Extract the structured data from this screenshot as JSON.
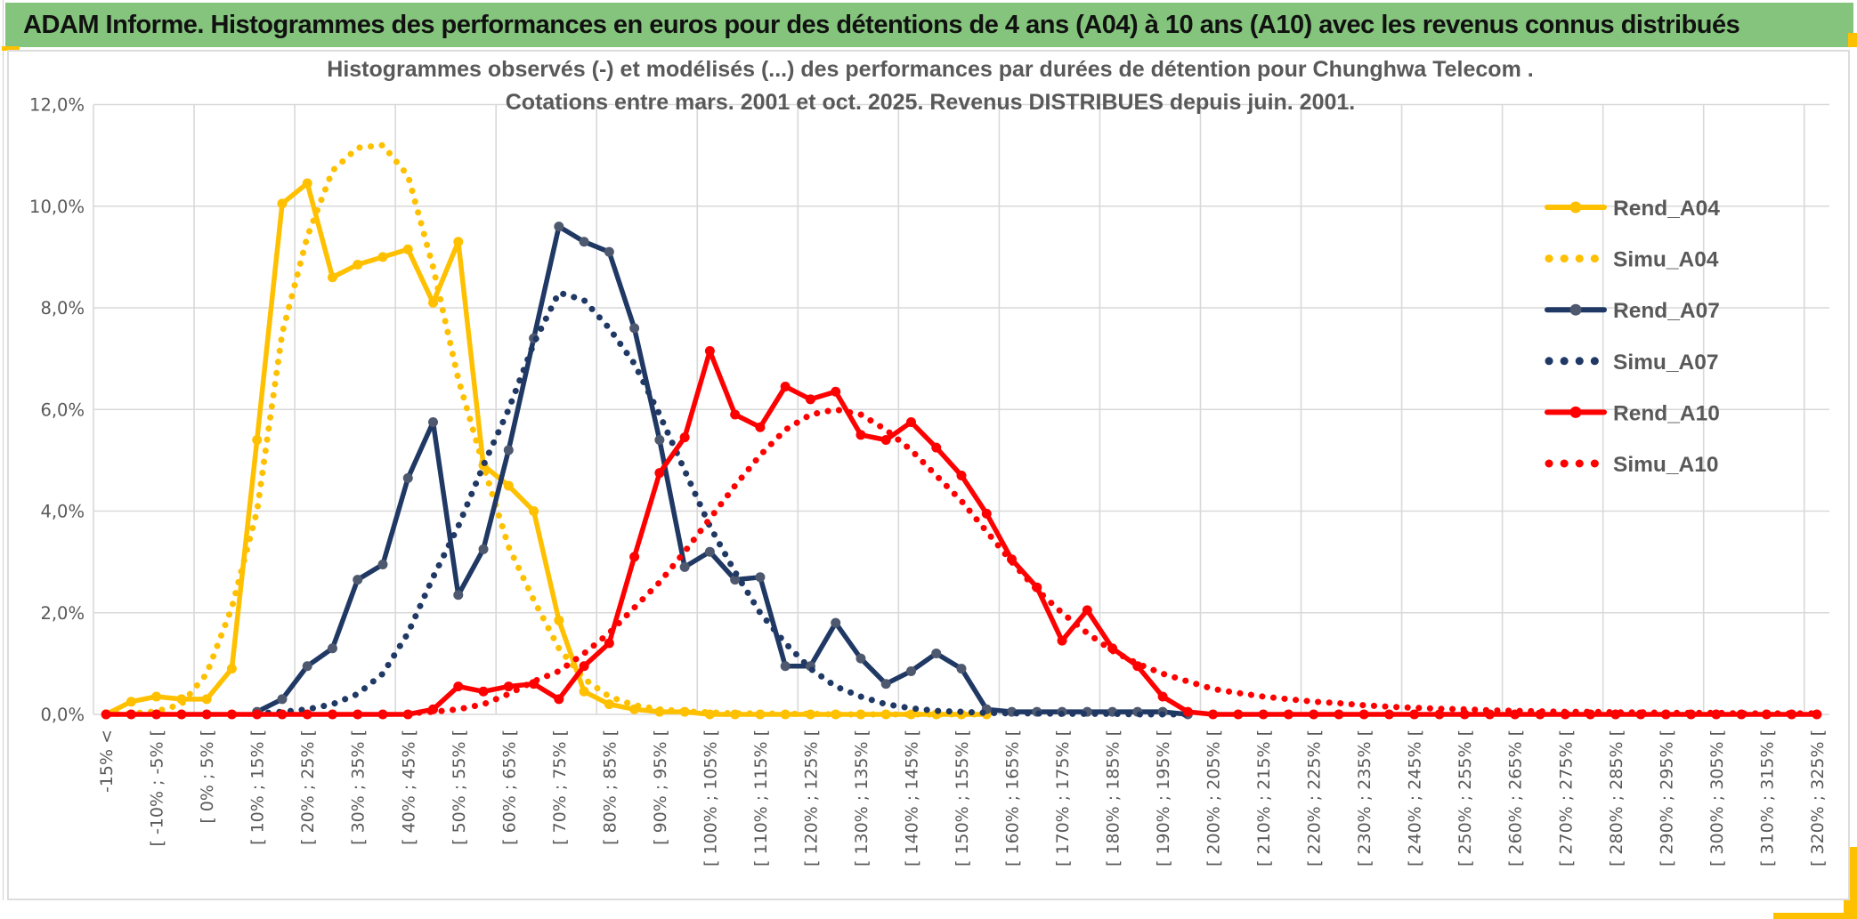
{
  "header": {
    "title": "ADAM Informe. Histogrammes des performances en euros pour des détentions de 4 ans (A04) à 10 ans (A10) avec les revenus connus distribués",
    "bar_color": "#84C47C",
    "accent_color": "#FFC000"
  },
  "chart_data": {
    "type": "line",
    "title_line1": "Histogrammes observés (-) et modélisés (...) des performances par durées de détention pour Chunghwa Telecom .",
    "title_line2": "Cotations entre mars. 2001 et oct. 2025. Revenus DISTRIBUES depuis juin. 2001.",
    "ylabel": "",
    "xlabel": "",
    "ylim": [
      0,
      12
    ],
    "y_tick_step": 2,
    "y_ticks": [
      "0,0%",
      "2,0%",
      "4,0%",
      "6,0%",
      "8,0%",
      "10,0%",
      "12,0%"
    ],
    "n_categories": 69,
    "x_label_interval": 2,
    "x_labels_shown": [
      "-15% <",
      "[ -10% ; -5% [",
      "[ 0% ; 5% [",
      "[ 10% ; 15% [",
      "[ 20% ; 25% [",
      "[ 30% ; 35% [",
      "[ 40% ; 45% [",
      "[ 50% ; 55% [",
      "[ 60% ; 65% [",
      "[ 70% ; 75% [",
      "[ 80% ; 85% [",
      "[ 90% ; 95% [",
      "[ 100% ; 105% [",
      "[ 110% ; 115% [",
      "[ 120% ; 125% [",
      "[ 130% ; 135% [",
      "[ 140% ; 145% [",
      "[ 150% ; 155% [",
      "[ 160% ; 165% [",
      "[ 170% ; 175% [",
      "[ 180% ; 185% [",
      "[ 190% ; 195% [",
      "[ 200% ; 205% [",
      "[ 210% ; 215% [",
      "[ 220% ; 225% [",
      "[ 230% ; 235% [",
      "[ 240% ; 245% [",
      "[ 250% ; 255% [",
      "[ 260% ; 265% [",
      "[ 270% ; 275% [",
      "[ 280% ; 285% [",
      "[ 290% ; 295% [",
      "[ 300% ; 305% [",
      "[ 310% ; 315% [",
      "[ 320% ; 325% ["
    ],
    "grid": true,
    "grid_color": "#D9D9D9",
    "axis_text_color": "#595959",
    "legend_position": "right-inside",
    "series": [
      {
        "name": "Rend_A04",
        "style": "solid",
        "color": "#FFC000",
        "marker_color": "#FFC000",
        "values": [
          0,
          0.25,
          0.35,
          0.3,
          0.3,
          0.9,
          5.4,
          10.05,
          10.45,
          8.6,
          8.85,
          9.0,
          9.15,
          8.1,
          9.3,
          4.9,
          4.5,
          4.0,
          1.85,
          0.45,
          0.2,
          0.1,
          0.05,
          0.05,
          0,
          0,
          0,
          0,
          0,
          0,
          0,
          0,
          0,
          0,
          0,
          0,
          null,
          null,
          null,
          null,
          null,
          null,
          null,
          null,
          null,
          null,
          null,
          null,
          null,
          null,
          null,
          null,
          null,
          null,
          null,
          null,
          null,
          null,
          null,
          null,
          null,
          null,
          null,
          null,
          null,
          null,
          null,
          null,
          null
        ]
      },
      {
        "name": "Simu_A04",
        "style": "dotted",
        "color": "#FFC000",
        "marker_color": "#FFC000",
        "values": [
          0,
          0.02,
          0.06,
          0.2,
          0.8,
          2.1,
          4.0,
          7.5,
          9.4,
          10.7,
          11.15,
          11.2,
          10.6,
          8.8,
          6.6,
          4.9,
          3.3,
          2.25,
          1.3,
          0.7,
          0.35,
          0.18,
          0.1,
          0.06,
          0.04,
          0.02,
          0.02,
          0.01,
          0.01,
          0,
          0,
          0,
          0,
          0,
          0,
          0,
          null,
          null,
          null,
          null,
          null,
          null,
          null,
          null,
          null,
          null,
          null,
          null,
          null,
          null,
          null,
          null,
          null,
          null,
          null,
          null,
          null,
          null,
          null,
          null,
          null,
          null,
          null,
          null,
          null,
          null,
          null,
          null,
          null
        ]
      },
      {
        "name": "Rend_A07",
        "style": "solid",
        "color": "#1F3864",
        "marker_color": "#4E586E",
        "values": [
          null,
          null,
          null,
          null,
          null,
          null,
          0.05,
          0.3,
          0.95,
          1.3,
          2.65,
          2.95,
          4.65,
          5.75,
          2.35,
          3.25,
          5.2,
          7.4,
          9.6,
          9.3,
          9.1,
          7.6,
          5.4,
          2.9,
          3.2,
          2.65,
          2.7,
          0.95,
          0.95,
          1.8,
          1.1,
          0.6,
          0.85,
          1.2,
          0.9,
          0.1,
          0.05,
          0.05,
          0.05,
          0.05,
          0.05,
          0.05,
          0.05,
          0,
          null,
          null,
          null,
          null,
          null,
          null,
          null,
          null,
          null,
          null,
          null,
          null,
          null,
          null,
          null,
          null,
          null,
          null,
          null,
          null,
          null,
          null,
          null,
          null,
          null
        ]
      },
      {
        "name": "Simu_A07",
        "style": "dotted",
        "color": "#1F3864",
        "marker_color": "#1F3864",
        "values": [
          null,
          null,
          null,
          null,
          null,
          null,
          0.02,
          0.05,
          0.1,
          0.2,
          0.4,
          0.8,
          1.6,
          2.7,
          3.7,
          4.9,
          6.0,
          7.3,
          8.3,
          8.15,
          7.6,
          6.9,
          5.9,
          4.8,
          3.7,
          2.8,
          2.0,
          1.4,
          0.9,
          0.55,
          0.35,
          0.2,
          0.12,
          0.07,
          0.05,
          0.03,
          0.02,
          0.02,
          0.01,
          0.01,
          0.01,
          0,
          0,
          0,
          null,
          null,
          null,
          null,
          null,
          null,
          null,
          null,
          null,
          null,
          null,
          null,
          null,
          null,
          null,
          null,
          null,
          null,
          null,
          null,
          null,
          null,
          null,
          null,
          null
        ]
      },
      {
        "name": "Rend_A10",
        "style": "solid",
        "color": "#FF0000",
        "marker_color": "#FF0000",
        "values": [
          0,
          0,
          0,
          0,
          0,
          0,
          0,
          0,
          0,
          0,
          0,
          0,
          0,
          0.1,
          0.55,
          0.45,
          0.55,
          0.6,
          0.3,
          0.95,
          1.4,
          3.1,
          4.75,
          5.45,
          7.15,
          5.9,
          5.65,
          6.45,
          6.2,
          6.35,
          5.5,
          5.4,
          5.75,
          5.25,
          4.7,
          3.95,
          3.05,
          2.5,
          1.45,
          2.05,
          1.3,
          0.95,
          0.35,
          0.05,
          0,
          0,
          0,
          0,
          0,
          0,
          0,
          0,
          0,
          0,
          0,
          0,
          0,
          0,
          0,
          0,
          0,
          0,
          0,
          0,
          0,
          0,
          0,
          0,
          0
        ]
      },
      {
        "name": "Simu_A10",
        "style": "dotted",
        "color": "#FF0000",
        "marker_color": "#FF0000",
        "values": [
          null,
          null,
          null,
          null,
          null,
          null,
          null,
          null,
          null,
          null,
          null,
          null,
          0.02,
          0.05,
          0.1,
          0.2,
          0.4,
          0.65,
          0.85,
          1.2,
          1.6,
          2.1,
          2.6,
          3.2,
          3.85,
          4.5,
          5.1,
          5.6,
          5.9,
          6.0,
          5.9,
          5.6,
          5.2,
          4.7,
          4.2,
          3.6,
          3.0,
          2.45,
          2.0,
          1.6,
          1.25,
          1.0,
          0.8,
          0.65,
          0.5,
          0.42,
          0.35,
          0.3,
          0.25,
          0.22,
          0.18,
          0.15,
          0.13,
          0.11,
          0.1,
          0.08,
          0.07,
          0.06,
          0.05,
          0.05,
          0.04,
          0.04,
          0.03,
          0.03,
          0.03,
          0.02,
          0.02,
          0.02,
          0.02
        ]
      }
    ]
  }
}
